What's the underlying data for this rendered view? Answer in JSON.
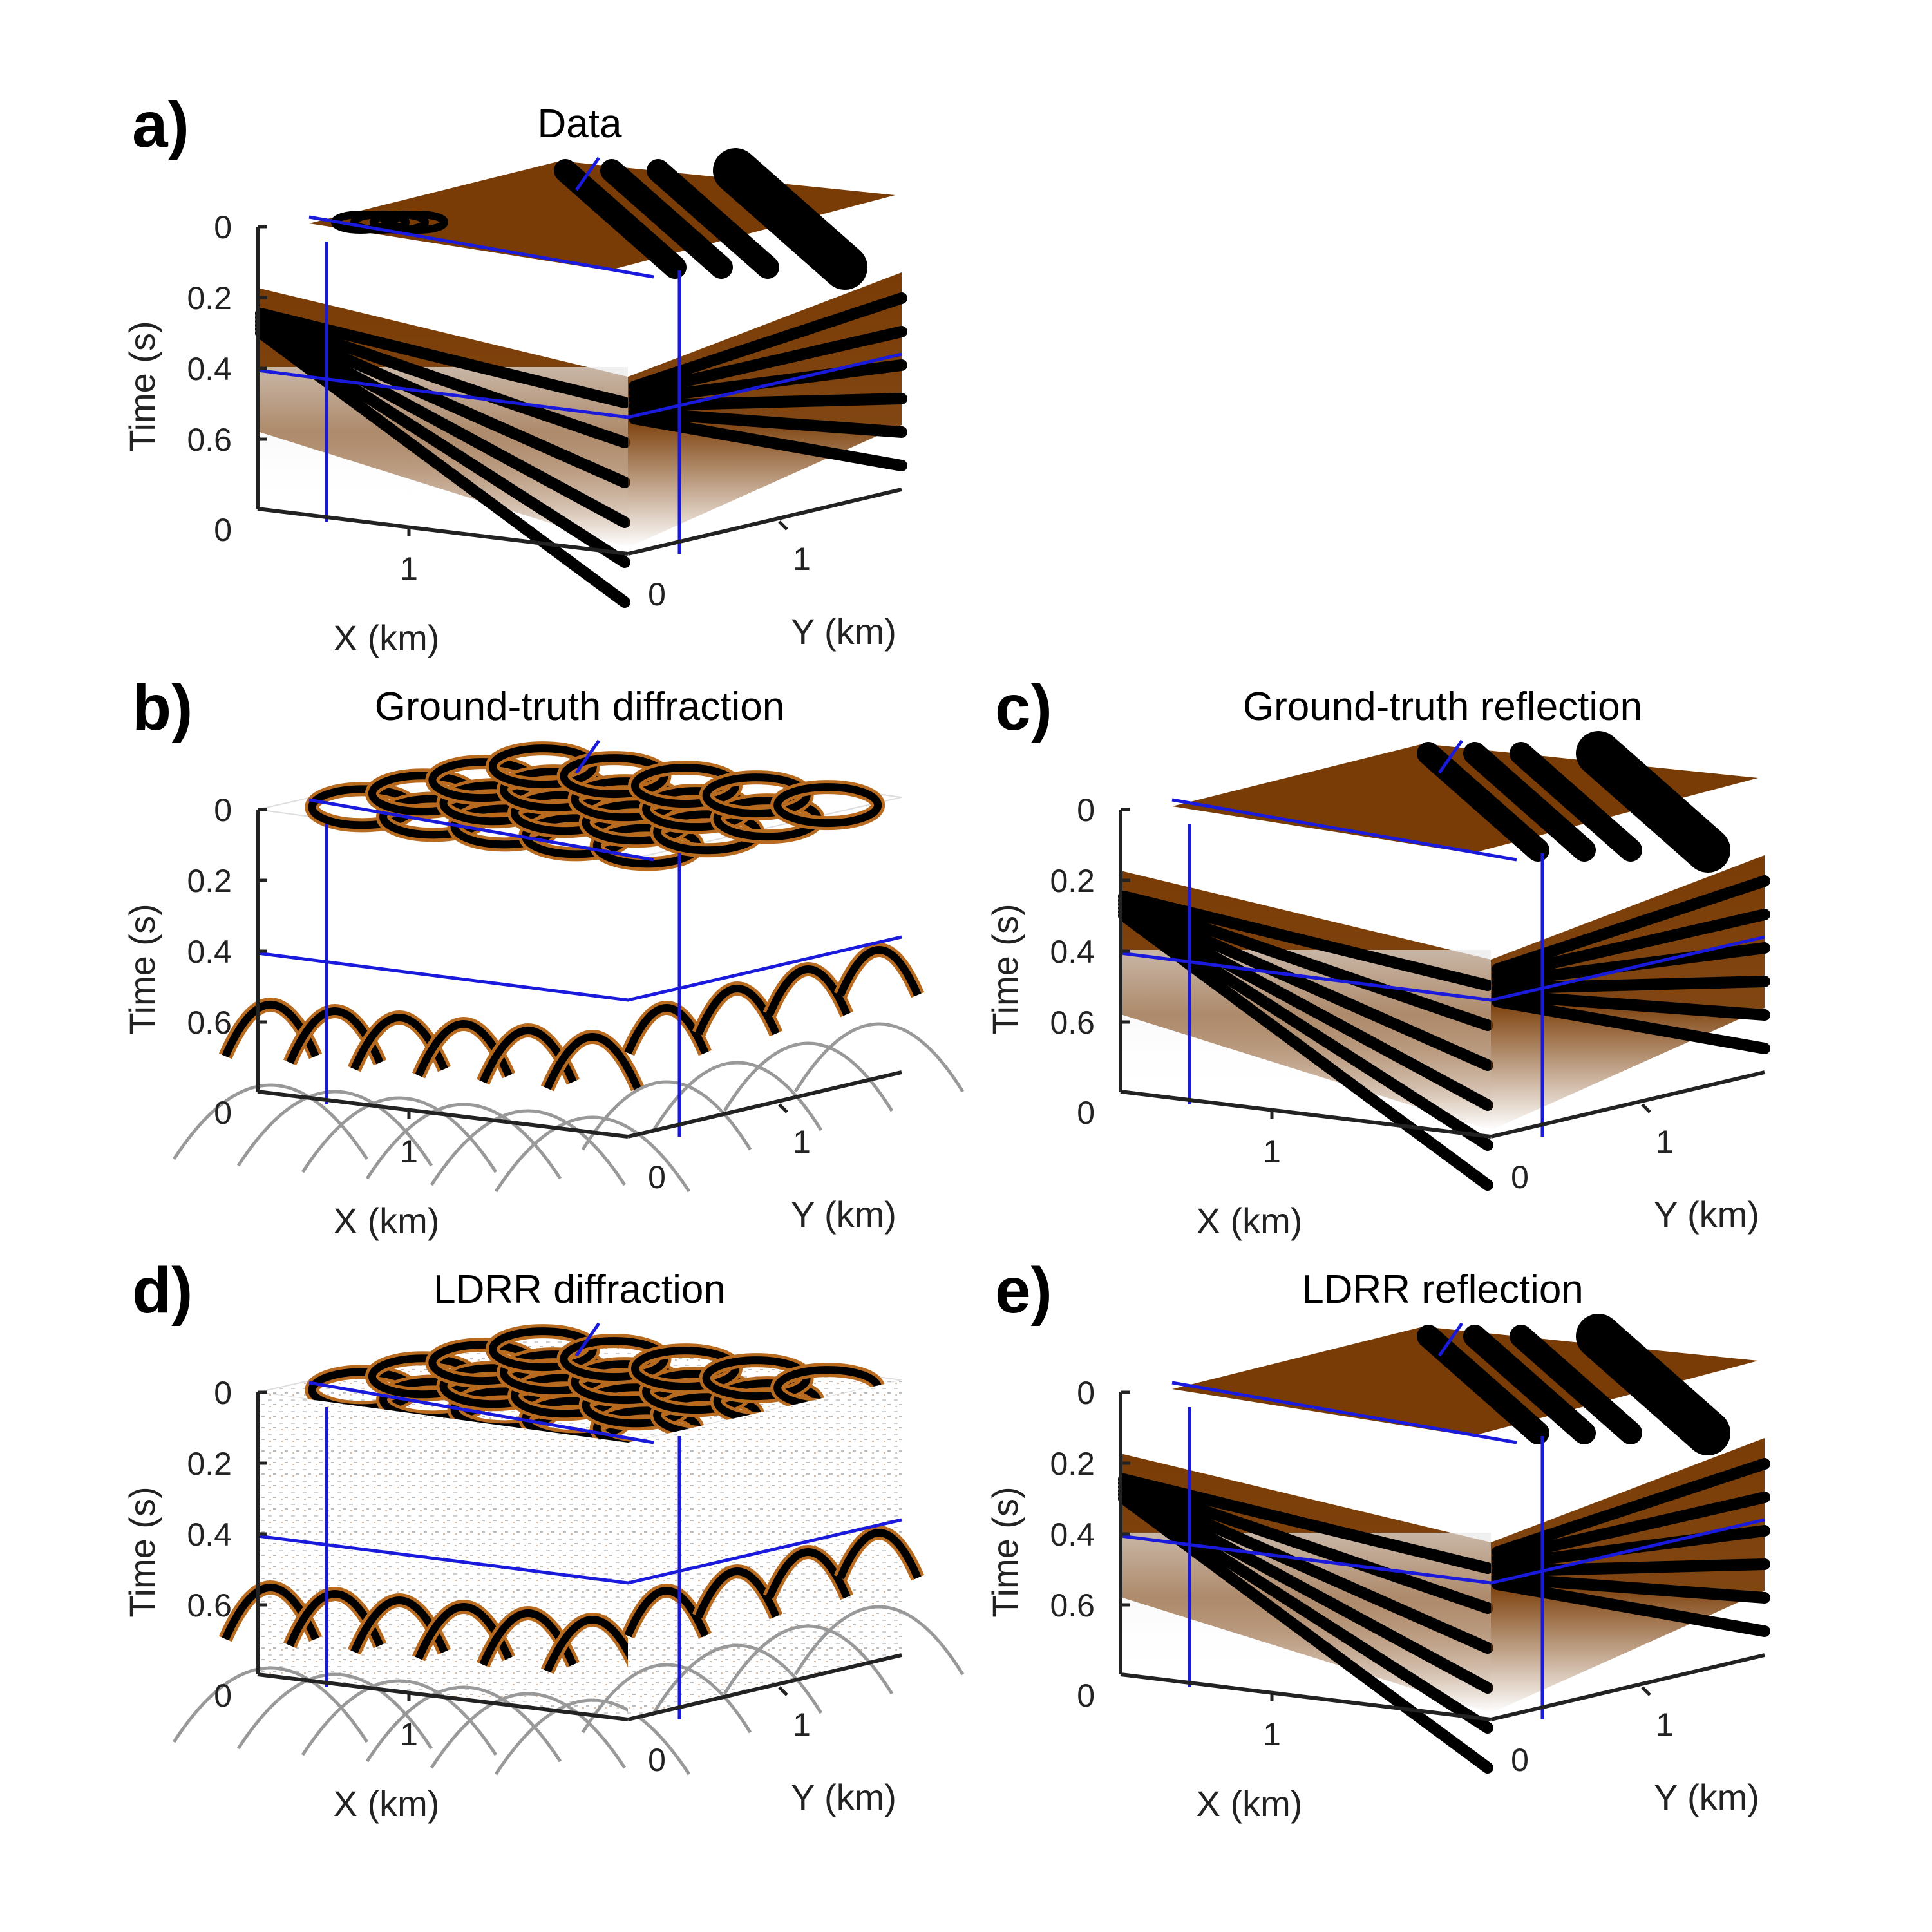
{
  "figure": {
    "panels": [
      {
        "id": "a",
        "letter": "a)",
        "title": "Data",
        "kind": "data"
      },
      {
        "id": "b",
        "letter": "b)",
        "title": "Ground-truth diffraction",
        "kind": "diffraction"
      },
      {
        "id": "c",
        "letter": "c)",
        "title": "Ground-truth reflection",
        "kind": "reflection"
      },
      {
        "id": "d",
        "letter": "d)",
        "title": "LDRR diffraction",
        "kind": "ldrr-diffraction"
      },
      {
        "id": "e",
        "letter": "e)",
        "title": "LDRR reflection",
        "kind": "ldrr-reflection"
      }
    ],
    "axes": {
      "time_label": "Time (s)",
      "x_label": "X (km)",
      "y_label": "Y (km)",
      "time_ticks": [
        "0",
        "0.2",
        "0.4",
        "0.6"
      ],
      "x_ticks": [
        "0",
        "1"
      ],
      "y_ticks": [
        "0",
        "1"
      ]
    },
    "colors": {
      "reflection_fill": "#7a3c06",
      "event": "#000000",
      "slice_line": "#1a1adc",
      "background": "#ffffff"
    }
  }
}
